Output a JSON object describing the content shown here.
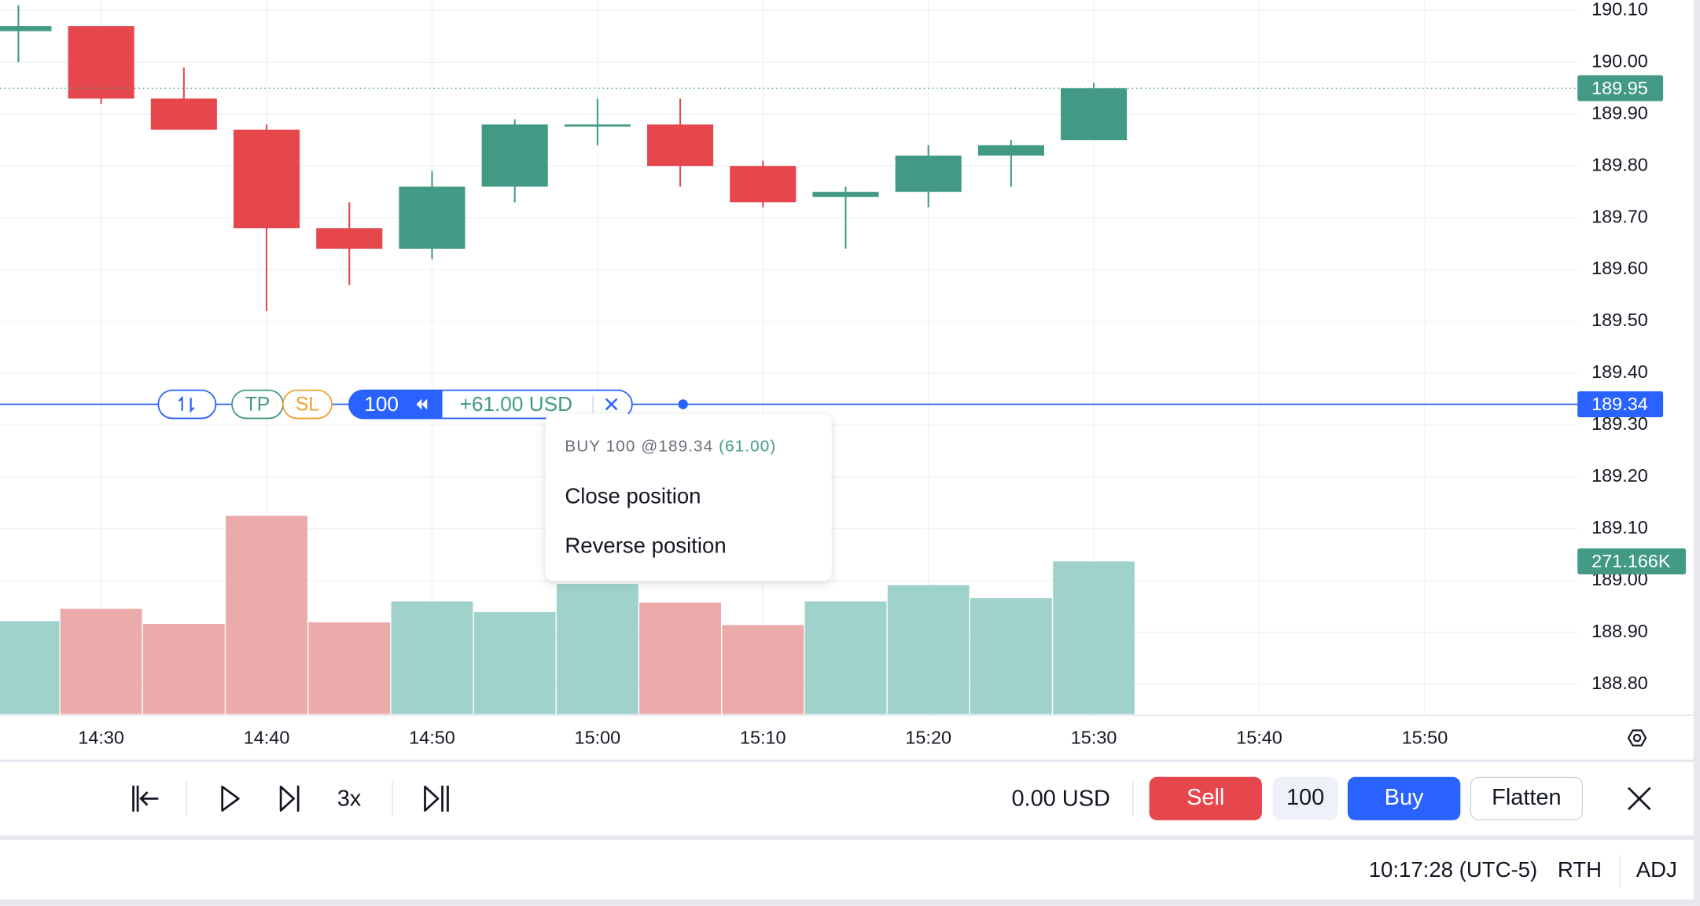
{
  "chart_data": {
    "type": "candlestick",
    "open": [
      190.06,
      190.07,
      189.93,
      189.87,
      189.68,
      189.64,
      189.76,
      189.88,
      189.88,
      189.8,
      189.74,
      189.75,
      189.82,
      189.85
    ],
    "high": [
      190.11,
      190.07,
      189.99,
      189.88,
      189.73,
      189.79,
      189.89,
      189.93,
      189.93,
      189.81,
      189.76,
      189.84,
      189.85,
      189.96
    ],
    "low": [
      190.0,
      189.92,
      189.87,
      189.52,
      189.57,
      189.62,
      189.73,
      189.84,
      189.76,
      189.72,
      189.64,
      189.72,
      189.76,
      189.85
    ],
    "close": [
      190.07,
      189.93,
      189.87,
      189.68,
      189.64,
      189.76,
      189.88,
      189.88,
      189.8,
      189.73,
      189.75,
      189.82,
      189.84,
      189.95
    ],
    "volume": [
      165000,
      187000,
      160000,
      352000,
      163000,
      200000,
      181000,
      231000,
      198000,
      158000,
      200000,
      229000,
      206000,
      271166
    ],
    "volume_value_labels": [
      null,
      null,
      null,
      null,
      null,
      null,
      null,
      null,
      null,
      null,
      null,
      null,
      null,
      "271.166K"
    ],
    "up_color": "#429a85",
    "down_color": "#e5474d",
    "volume_up_color": "#a0d2cc",
    "volume_down_color": "#ebabaa",
    "ylim": [
      188.74,
      190.12
    ],
    "yticks": [
      {
        "value": 190.1,
        "label": "190.10"
      },
      {
        "value": 190.0,
        "label": "190.00"
      },
      {
        "value": 189.9,
        "label": "189.90"
      },
      {
        "value": 189.8,
        "label": "189.80"
      },
      {
        "value": 189.7,
        "label": "189.70"
      },
      {
        "value": 189.6,
        "label": "189.60"
      },
      {
        "value": 189.5,
        "label": "189.50"
      },
      {
        "value": 189.4,
        "label": "189.40"
      },
      {
        "value": 189.3,
        "label": "189.30"
      },
      {
        "value": 189.2,
        "label": "189.20"
      },
      {
        "value": 189.1,
        "label": "189.10"
      },
      {
        "value": 189.0,
        "label": "189.00"
      },
      {
        "value": 188.9,
        "label": "188.90"
      },
      {
        "value": 188.8,
        "label": "188.80"
      }
    ],
    "xticks": [
      "14:30",
      "14:40",
      "14:50",
      "15:00",
      "15:10",
      "15:20",
      "15:30",
      "15:40",
      "15:50"
    ],
    "last_price": 189.95,
    "position_price": 189.34,
    "grid": true
  },
  "position": {
    "quantity": "100",
    "tp": "TP",
    "sl": "SL",
    "pnl": "+61.00 USD"
  },
  "popup": {
    "summary": "BUY 100 @189.34",
    "pnl": "(61.00)",
    "items": [
      "Close position",
      "Reverse position"
    ]
  },
  "toolbar": {
    "speed": "3x",
    "balance": "0.00 USD",
    "sell": "Sell",
    "quantity": "100",
    "buy": "Buy",
    "flatten": "Flatten"
  },
  "status": {
    "time": "10:17:28 (UTC-5)",
    "session": "RTH",
    "adjust": "ADJ"
  }
}
